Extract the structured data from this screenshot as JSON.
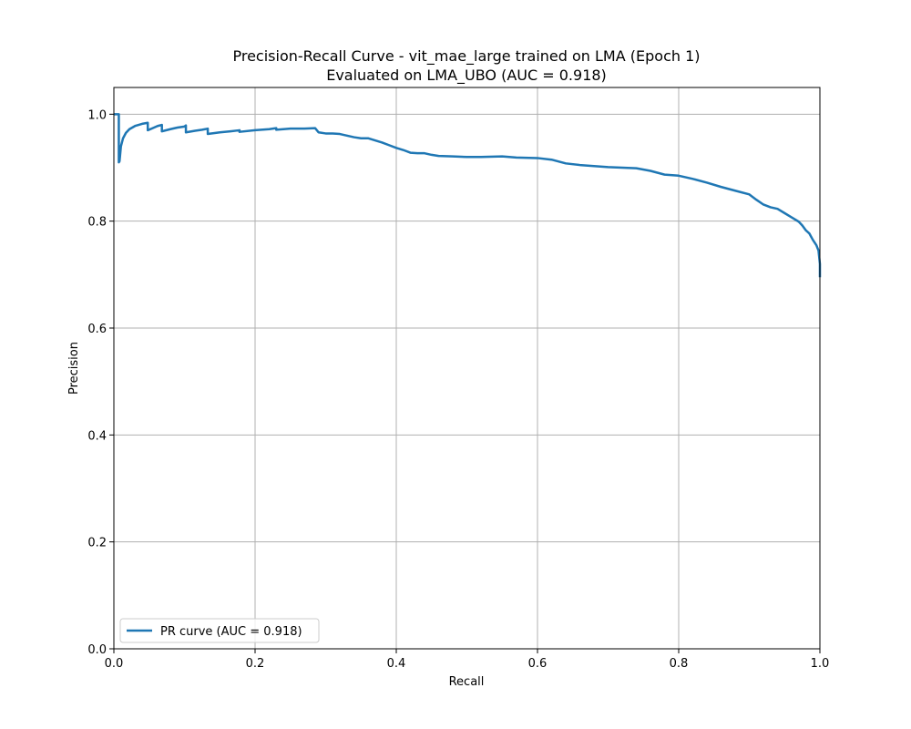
{
  "chart_data": {
    "type": "line",
    "title_line1": "Precision-Recall Curve - vit_mae_large trained on LMA (Epoch 1)",
    "title_line2": "Evaluated on LMA_UBO (AUC = 0.918)",
    "xlabel": "Recall",
    "ylabel": "Precision",
    "xlim": [
      0.0,
      1.0
    ],
    "ylim": [
      0.0,
      1.05
    ],
    "xticks": [
      0.0,
      0.2,
      0.4,
      0.6,
      0.8,
      1.0
    ],
    "xtick_labels": [
      "0.0",
      "0.2",
      "0.4",
      "0.6",
      "0.8",
      "1.0"
    ],
    "yticks": [
      0.0,
      0.2,
      0.4,
      0.6,
      0.8,
      1.0
    ],
    "ytick_labels": [
      "0.0",
      "0.2",
      "0.4",
      "0.6",
      "0.8",
      "1.0"
    ],
    "grid": true,
    "legend_position": "lower-left",
    "series": [
      {
        "name": "PR curve (AUC = 0.918)",
        "color": "#1f77b4",
        "x": [
          0.0,
          0.007,
          0.007,
          0.008,
          0.01,
          0.013,
          0.017,
          0.022,
          0.03,
          0.04,
          0.048,
          0.048,
          0.055,
          0.062,
          0.068,
          0.068,
          0.08,
          0.09,
          0.1,
          0.102,
          0.102,
          0.115,
          0.125,
          0.133,
          0.133,
          0.15,
          0.165,
          0.178,
          0.178,
          0.2,
          0.22,
          0.23,
          0.23,
          0.25,
          0.27,
          0.285,
          0.29,
          0.3,
          0.31,
          0.32,
          0.33,
          0.34,
          0.35,
          0.36,
          0.37,
          0.38,
          0.39,
          0.4,
          0.41,
          0.42,
          0.43,
          0.44,
          0.45,
          0.46,
          0.48,
          0.5,
          0.52,
          0.55,
          0.57,
          0.6,
          0.62,
          0.64,
          0.66,
          0.68,
          0.7,
          0.72,
          0.74,
          0.76,
          0.78,
          0.8,
          0.82,
          0.84,
          0.86,
          0.88,
          0.9,
          0.91,
          0.92,
          0.93,
          0.94,
          0.95,
          0.96,
          0.97,
          0.975,
          0.98,
          0.985,
          0.99,
          0.995,
          0.998,
          1.0,
          1.0
        ],
        "y": [
          1.0,
          1.0,
          0.91,
          0.912,
          0.94,
          0.955,
          0.965,
          0.972,
          0.978,
          0.982,
          0.984,
          0.97,
          0.974,
          0.978,
          0.98,
          0.968,
          0.972,
          0.975,
          0.977,
          0.979,
          0.966,
          0.969,
          0.971,
          0.973,
          0.963,
          0.966,
          0.968,
          0.97,
          0.967,
          0.97,
          0.972,
          0.974,
          0.971,
          0.973,
          0.973,
          0.974,
          0.966,
          0.964,
          0.964,
          0.963,
          0.96,
          0.957,
          0.955,
          0.955,
          0.951,
          0.947,
          0.942,
          0.937,
          0.933,
          0.928,
          0.927,
          0.927,
          0.924,
          0.922,
          0.921,
          0.92,
          0.92,
          0.921,
          0.919,
          0.918,
          0.915,
          0.908,
          0.905,
          0.903,
          0.901,
          0.9,
          0.899,
          0.894,
          0.887,
          0.885,
          0.879,
          0.872,
          0.864,
          0.857,
          0.85,
          0.84,
          0.831,
          0.826,
          0.823,
          0.815,
          0.807,
          0.799,
          0.792,
          0.783,
          0.777,
          0.765,
          0.755,
          0.745,
          0.72,
          0.695
        ]
      }
    ]
  }
}
